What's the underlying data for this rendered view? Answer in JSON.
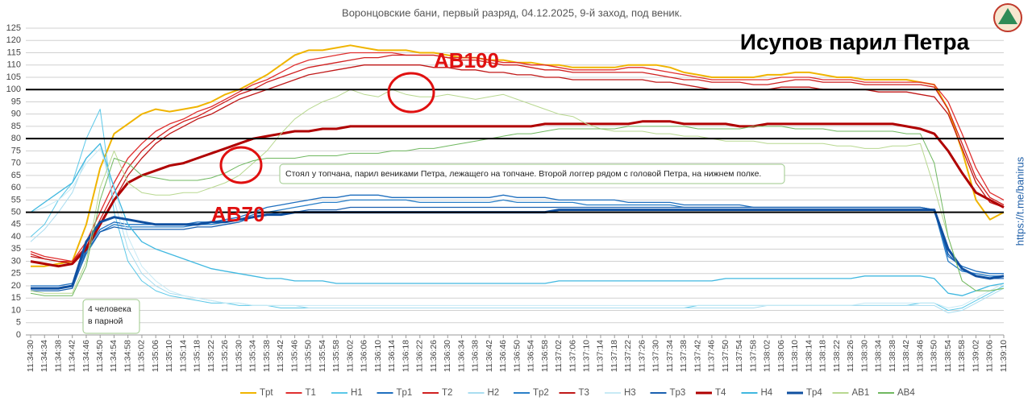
{
  "chart_data": {
    "type": "line",
    "title": "Воронцовские бани, первый разряд, 04.12.2025, 9-й заход, под веник.",
    "headline": "Исупов парил Петра",
    "side_text": "https://t.me/banirus",
    "annotations": {
      "ab100": "AB100",
      "ab70": "AB70",
      "note": "Стоял у топчана, парил вениками Петра, лежащего на топчане. Второй логгер рядом с головой Петра, на нижнем полке.",
      "people": [
        "4 человека",
        "в парной"
      ]
    },
    "ylim": [
      0,
      125
    ],
    "yticks": [
      0,
      5,
      10,
      15,
      20,
      25,
      30,
      35,
      40,
      45,
      50,
      55,
      60,
      65,
      70,
      75,
      80,
      85,
      90,
      95,
      100,
      105,
      110,
      115,
      120,
      125
    ],
    "grid": true,
    "reference_lines": [
      50,
      80,
      100
    ],
    "categories": [
      "11:34:30",
      "11:34:34",
      "11:34:38",
      "11:34:42",
      "11:34:46",
      "11:34:50",
      "11:34:54",
      "11:34:58",
      "11:35:02",
      "11:35:06",
      "11:35:10",
      "11:35:14",
      "11:35:18",
      "11:35:22",
      "11:35:26",
      "11:35:30",
      "11:35:34",
      "11:35:38",
      "11:35:42",
      "11:35:46",
      "11:35:50",
      "11:35:54",
      "11:35:58",
      "11:36:02",
      "11:36:06",
      "11:36:10",
      "11:36:14",
      "11:36:18",
      "11:36:22",
      "11:36:26",
      "11:36:30",
      "11:36:34",
      "11:36:38",
      "11:36:42",
      "11:36:46",
      "11:36:50",
      "11:36:54",
      "11:36:58",
      "11:37:02",
      "11:37:06",
      "11:37:10",
      "11:37:14",
      "11:37:18",
      "11:37:22",
      "11:37:26",
      "11:37:30",
      "11:37:34",
      "11:37:38",
      "11:37:42",
      "11:37:46",
      "11:37:50",
      "11:37:54",
      "11:37:58",
      "11:38:02",
      "11:38:06",
      "11:38:10",
      "11:38:14",
      "11:38:18",
      "11:38:22",
      "11:38:26",
      "11:38:30",
      "11:38:34",
      "11:38:38",
      "11:38:42",
      "11:38:46",
      "11:38:50",
      "11:38:54",
      "11:38:58",
      "11:39:02",
      "11:39:06",
      "11:39:10"
    ],
    "legend_position": "bottom",
    "series": [
      {
        "name": "Tpt",
        "color": "#f0b400",
        "width": 2,
        "values": [
          28,
          28,
          29,
          30,
          45,
          68,
          82,
          86,
          90,
          92,
          91,
          92,
          93,
          95,
          98,
          100,
          103,
          106,
          110,
          114,
          116,
          116,
          117,
          118,
          117,
          116,
          116,
          116,
          115,
          115,
          114,
          113,
          113,
          112,
          112,
          111,
          111,
          110,
          110,
          109,
          109,
          109,
          109,
          110,
          110,
          110,
          109,
          107,
          106,
          105,
          105,
          105,
          105,
          106,
          106,
          107,
          107,
          106,
          105,
          105,
          104,
          104,
          104,
          104,
          103,
          102,
          92,
          75,
          55,
          47,
          50
        ]
      },
      {
        "name": "T1",
        "color": "#e03030",
        "width": 1.3,
        "values": [
          34,
          32,
          31,
          30,
          38,
          50,
          62,
          72,
          78,
          83,
          86,
          88,
          91,
          93,
          96,
          99,
          102,
          104,
          107,
          110,
          112,
          113,
          114,
          115,
          115,
          115,
          115,
          114,
          114,
          114,
          113,
          113,
          113,
          112,
          111,
          111,
          110,
          110,
          109,
          108,
          108,
          108,
          108,
          109,
          109,
          108,
          107,
          106,
          105,
          104,
          104,
          104,
          104,
          104,
          105,
          105,
          105,
          104,
          104,
          104,
          103,
          103,
          103,
          103,
          103,
          102,
          95,
          82,
          68,
          58,
          55
        ]
      },
      {
        "name": "H1",
        "color": "#5bc8e8",
        "width": 1,
        "values": [
          40,
          45,
          55,
          62,
          80,
          92,
          50,
          30,
          22,
          18,
          16,
          15,
          14,
          13,
          13,
          12,
          12,
          12,
          11,
          11,
          11,
          11,
          11,
          11,
          11,
          11,
          11,
          11,
          11,
          11,
          11,
          11,
          11,
          11,
          11,
          11,
          11,
          11,
          11,
          11,
          11,
          11,
          11,
          11,
          11,
          11,
          11,
          11,
          12,
          12,
          12,
          12,
          12,
          12,
          12,
          12,
          12,
          12,
          12,
          12,
          12,
          12,
          12,
          12,
          13,
          13,
          10,
          11,
          14,
          17,
          20
        ]
      },
      {
        "name": "Tp1",
        "color": "#1f6fbf",
        "width": 1.3,
        "values": [
          20,
          20,
          20,
          21,
          35,
          43,
          46,
          45,
          45,
          45,
          45,
          45,
          46,
          46,
          47,
          48,
          50,
          52,
          53,
          54,
          55,
          56,
          56,
          57,
          57,
          57,
          56,
          56,
          56,
          56,
          56,
          56,
          56,
          56,
          57,
          56,
          56,
          56,
          55,
          55,
          55,
          55,
          55,
          54,
          54,
          54,
          54,
          53,
          53,
          53,
          53,
          53,
          52,
          52,
          52,
          52,
          52,
          52,
          52,
          52,
          52,
          52,
          52,
          52,
          52,
          51,
          32,
          28,
          26,
          25,
          25
        ]
      },
      {
        "name": "T2",
        "color": "#d02020",
        "width": 1.3,
        "values": [
          33,
          31,
          30,
          30,
          36,
          47,
          58,
          68,
          75,
          80,
          84,
          87,
          89,
          92,
          95,
          98,
          100,
          103,
          105,
          107,
          109,
          110,
          111,
          112,
          113,
          113,
          114,
          114,
          114,
          114,
          113,
          112,
          112,
          111,
          110,
          110,
          109,
          108,
          108,
          107,
          107,
          107,
          107,
          107,
          107,
          106,
          105,
          104,
          104,
          103,
          103,
          103,
          102,
          102,
          103,
          104,
          104,
          103,
          103,
          103,
          102,
          102,
          102,
          102,
          102,
          101,
          92,
          78,
          64,
          56,
          53
        ]
      },
      {
        "name": "H2",
        "color": "#a9ddf0",
        "width": 1,
        "values": [
          38,
          43,
          50,
          58,
          72,
          78,
          55,
          35,
          25,
          20,
          17,
          16,
          15,
          14,
          13,
          13,
          12,
          12,
          12,
          12,
          11,
          11,
          11,
          11,
          11,
          11,
          11,
          11,
          11,
          11,
          11,
          11,
          11,
          11,
          11,
          11,
          11,
          11,
          11,
          11,
          11,
          11,
          11,
          11,
          11,
          11,
          11,
          11,
          11,
          11,
          11,
          11,
          11,
          12,
          12,
          12,
          12,
          12,
          12,
          12,
          12,
          12,
          12,
          12,
          12,
          12,
          9,
          10,
          13,
          16,
          19
        ]
      },
      {
        "name": "Tp2",
        "color": "#2a7fc8",
        "width": 1.3,
        "values": [
          19,
          19,
          19,
          20,
          33,
          42,
          45,
          44,
          44,
          44,
          44,
          44,
          45,
          45,
          46,
          47,
          49,
          50,
          51,
          52,
          53,
          54,
          54,
          55,
          55,
          55,
          55,
          55,
          54,
          54,
          54,
          54,
          54,
          54,
          55,
          54,
          54,
          54,
          54,
          54,
          53,
          53,
          53,
          53,
          53,
          53,
          53,
          52,
          52,
          52,
          52,
          52,
          52,
          52,
          52,
          52,
          52,
          52,
          52,
          52,
          52,
          52,
          52,
          52,
          52,
          51,
          30,
          26,
          25,
          24,
          24
        ]
      },
      {
        "name": "T3",
        "color": "#c01818",
        "width": 1.3,
        "values": [
          32,
          31,
          30,
          29,
          35,
          45,
          55,
          65,
          72,
          78,
          82,
          85,
          88,
          90,
          93,
          96,
          98,
          100,
          102,
          104,
          106,
          107,
          108,
          109,
          110,
          110,
          110,
          110,
          110,
          109,
          109,
          108,
          108,
          107,
          107,
          106,
          106,
          105,
          105,
          104,
          104,
          104,
          104,
          104,
          104,
          103,
          103,
          102,
          101,
          100,
          100,
          100,
          100,
          100,
          101,
          101,
          101,
          100,
          100,
          100,
          100,
          99,
          99,
          99,
          98,
          97,
          90,
          76,
          62,
          54,
          52
        ]
      },
      {
        "name": "H3",
        "color": "#c8eaf5",
        "width": 1,
        "values": [
          50,
          52,
          55,
          60,
          70,
          76,
          60,
          40,
          28,
          22,
          18,
          16,
          15,
          14,
          13,
          13,
          12,
          12,
          12,
          12,
          12,
          12,
          12,
          12,
          12,
          12,
          12,
          12,
          12,
          12,
          12,
          12,
          12,
          12,
          12,
          12,
          12,
          12,
          12,
          12,
          12,
          12,
          12,
          12,
          12,
          12,
          12,
          12,
          12,
          12,
          12,
          12,
          12,
          12,
          12,
          12,
          12,
          12,
          12,
          12,
          13,
          13,
          13,
          13,
          13,
          13,
          11,
          12,
          15,
          18,
          21
        ]
      },
      {
        "name": "Tp3",
        "color": "#1a60b0",
        "width": 1.3,
        "values": [
          18,
          18,
          18,
          19,
          34,
          42,
          44,
          43,
          43,
          43,
          43,
          43,
          44,
          44,
          45,
          46,
          48,
          49,
          50,
          50,
          51,
          51,
          51,
          52,
          52,
          52,
          52,
          52,
          52,
          52,
          52,
          52,
          52,
          52,
          52,
          52,
          52,
          52,
          52,
          52,
          52,
          52,
          52,
          52,
          52,
          52,
          52,
          52,
          52,
          52,
          52,
          52,
          52,
          52,
          52,
          52,
          52,
          52,
          52,
          52,
          52,
          52,
          52,
          52,
          52,
          51,
          33,
          27,
          24,
          23,
          23
        ]
      },
      {
        "name": "T4",
        "color": "#b00000",
        "width": 3,
        "values": [
          30,
          29,
          28,
          29,
          35,
          45,
          55,
          62,
          65,
          67,
          69,
          70,
          72,
          74,
          76,
          78,
          80,
          81,
          82,
          83,
          83,
          84,
          84,
          85,
          85,
          85,
          85,
          85,
          85,
          85,
          85,
          85,
          85,
          85,
          85,
          85,
          85,
          86,
          86,
          86,
          86,
          86,
          86,
          86,
          87,
          87,
          87,
          86,
          86,
          86,
          86,
          85,
          85,
          86,
          86,
          86,
          86,
          86,
          86,
          86,
          86,
          86,
          86,
          85,
          84,
          82,
          75,
          66,
          58,
          55,
          52
        ]
      },
      {
        "name": "H4",
        "color": "#40b8e0",
        "width": 1.3,
        "values": [
          50,
          54,
          58,
          62,
          72,
          78,
          60,
          45,
          38,
          35,
          33,
          31,
          29,
          27,
          26,
          25,
          24,
          23,
          23,
          22,
          22,
          22,
          21,
          21,
          21,
          21,
          21,
          21,
          21,
          21,
          21,
          21,
          21,
          21,
          21,
          21,
          21,
          21,
          22,
          22,
          22,
          22,
          22,
          22,
          22,
          22,
          22,
          22,
          22,
          22,
          23,
          23,
          23,
          23,
          23,
          23,
          23,
          23,
          23,
          23,
          24,
          24,
          24,
          24,
          24,
          23,
          17,
          16,
          18,
          20,
          21
        ]
      },
      {
        "name": "Tp4",
        "color": "#1050a0",
        "width": 3,
        "values": [
          19,
          19,
          19,
          20,
          38,
          46,
          48,
          47,
          46,
          45,
          45,
          45,
          45,
          46,
          46,
          47,
          48,
          49,
          49,
          50,
          50,
          50,
          50,
          50,
          50,
          50,
          50,
          50,
          50,
          50,
          50,
          50,
          50,
          50,
          50,
          50,
          50,
          50,
          51,
          51,
          51,
          51,
          51,
          51,
          51,
          51,
          51,
          51,
          51,
          51,
          51,
          51,
          51,
          51,
          51,
          51,
          51,
          51,
          51,
          51,
          51,
          51,
          51,
          51,
          51,
          51,
          35,
          27,
          24,
          23,
          24
        ]
      },
      {
        "name": "AB1",
        "color": "#b8d890",
        "width": 1,
        "values": [
          18,
          17,
          17,
          17,
          30,
          60,
          75,
          62,
          58,
          57,
          57,
          58,
          58,
          60,
          62,
          65,
          70,
          75,
          82,
          88,
          92,
          95,
          97,
          100,
          98,
          97,
          100,
          98,
          97,
          97,
          98,
          97,
          96,
          97,
          98,
          96,
          94,
          92,
          90,
          89,
          86,
          84,
          83,
          83,
          83,
          82,
          82,
          81,
          81,
          80,
          79,
          79,
          79,
          78,
          78,
          78,
          78,
          78,
          77,
          77,
          76,
          76,
          77,
          77,
          78,
          60,
          40,
          22,
          18,
          18,
          19
        ]
      },
      {
        "name": "AB4",
        "color": "#70b860",
        "width": 1,
        "values": [
          17,
          16,
          16,
          16,
          28,
          55,
          72,
          70,
          65,
          64,
          63,
          63,
          63,
          64,
          66,
          69,
          71,
          72,
          72,
          72,
          73,
          73,
          73,
          74,
          74,
          74,
          75,
          75,
          76,
          76,
          77,
          78,
          79,
          80,
          81,
          82,
          82,
          83,
          84,
          84,
          84,
          84,
          84,
          85,
          85,
          85,
          85,
          85,
          84,
          84,
          84,
          84,
          85,
          85,
          85,
          84,
          84,
          84,
          83,
          83,
          83,
          83,
          83,
          82,
          82,
          70,
          40,
          22,
          18,
          18,
          19
        ]
      }
    ]
  }
}
